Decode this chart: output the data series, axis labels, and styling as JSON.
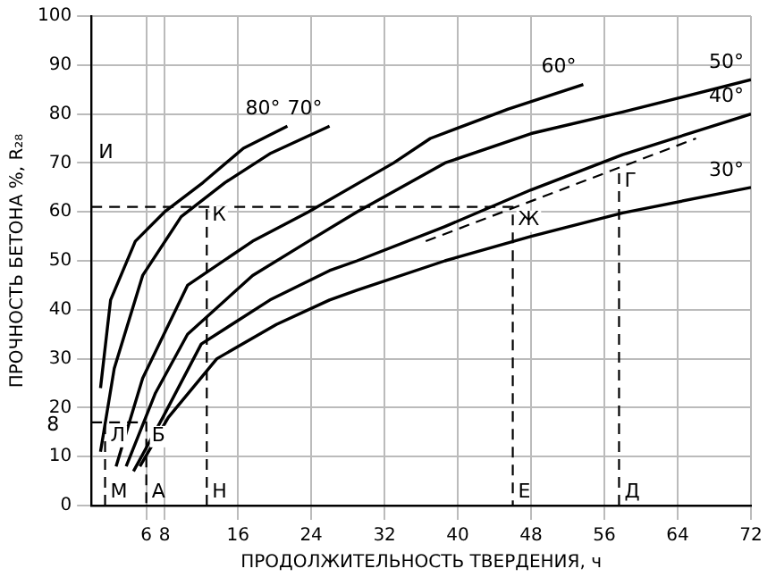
{
  "chart_data": {
    "type": "line",
    "xlabel": "ПРОДОЛЖИТЕЛЬНОСТЬ ТВЕРДЕНИЯ, ч",
    "ylabel": "ПРОЧНОСТЬ БЕТОНА %, R₂₈",
    "xlim": [
      0,
      72
    ],
    "xticks": [
      6,
      8,
      16,
      24,
      32,
      40,
      48,
      56,
      64,
      72
    ],
    "ylim": [
      0,
      100
    ],
    "yticks": [
      0,
      10,
      20,
      30,
      40,
      50,
      60,
      70,
      80,
      90,
      100
    ],
    "grid": true,
    "legend": false,
    "marker": "none",
    "series": [
      {
        "name": "80°",
        "color": "#000000",
        "x": [
          1.0,
          2.1,
          4.8,
          8,
          12.2,
          16.6,
          21.4
        ],
        "values": [
          24,
          42,
          54,
          60,
          66,
          73,
          77.5
        ]
      },
      {
        "name": "70°",
        "color": "#000000",
        "x": [
          1.0,
          2.5,
          5.6,
          9.8,
          14.6,
          19.6,
          26
        ],
        "values": [
          11,
          28,
          47,
          59,
          66,
          72,
          77.5
        ]
      },
      {
        "name": "60°",
        "color": "#000000",
        "x": [
          2.7,
          5.6,
          10.5,
          17.6,
          23.7,
          33,
          37,
          45.5,
          53.7
        ],
        "values": [
          8,
          26,
          45,
          54,
          60,
          70,
          75,
          81,
          86
        ]
      },
      {
        "name": "50°",
        "color": "#000000",
        "x": [
          3.8,
          7,
          10.5,
          17.6,
          23.7,
          29,
          38.6,
          48,
          58,
          72
        ],
        "values": [
          8,
          23,
          35,
          47,
          54,
          60,
          70,
          76,
          80.4,
          87
        ]
      },
      {
        "name": "40°",
        "color": "#000000",
        "x": [
          4.6,
          7.8,
          12,
          19.5,
          26,
          29,
          38.6,
          48,
          58,
          72
        ],
        "values": [
          7,
          18,
          33,
          42,
          48,
          50,
          57,
          64.5,
          71.7,
          80
        ]
      },
      {
        "name": "30°",
        "color": "#000000",
        "x": [
          5.3,
          8.4,
          13.7,
          20.2,
          26,
          29,
          38.6,
          48,
          58,
          72
        ],
        "values": [
          8,
          18,
          30,
          37,
          42,
          44,
          50,
          55,
          59.8,
          65
        ]
      },
      {
        "type": "line",
        "line_style": "dashed",
        "color": "#000000",
        "x": [
          0,
          46,
          46
        ],
        "values": [
          61,
          61,
          0
        ]
      },
      {
        "type": "line",
        "line_style": "dashed",
        "color": "#000000",
        "x": [
          12.6,
          12.6
        ],
        "values": [
          0,
          62
        ]
      },
      {
        "type": "line",
        "line_style": "dashed",
        "color": "#000000",
        "x": [
          0,
          6,
          6
        ],
        "values": [
          17,
          17,
          0
        ]
      },
      {
        "type": "line",
        "line_style": "dashed",
        "color": "#000000",
        "x": [
          57.6,
          57.6
        ],
        "values": [
          0,
          69
        ]
      },
      {
        "type": "line",
        "line_style": "dashed",
        "color": "#000000",
        "x": [
          36.5,
          66
        ],
        "values": [
          54,
          75
        ]
      },
      {
        "type": "line",
        "line_style": "dashed",
        "color": "#000000",
        "x": [
          1.5,
          1.5
        ],
        "values": [
          0,
          17
        ]
      }
    ],
    "annotations": [
      "И",
      {
        "text": "К",
        "x": 12.6,
        "y": 62
      },
      {
        "text": "Ж",
        "x": 46,
        "y": 61
      },
      {
        "text": "Г",
        "x": 57.6,
        "y": 69
      },
      {
        "text": "Д",
        "x": 57.6,
        "y": 0
      },
      {
        "text": "Е",
        "x": 46,
        "y": 0
      },
      {
        "text": "М",
        "x": 1.5,
        "y": 0
      },
      {
        "text": "А",
        "x": 6,
        "y": 0
      },
      {
        "text": "Н",
        "x": 12.6,
        "y": 0
      },
      {
        "text": "Б",
        "x": 6,
        "y": 17
      },
      {
        "text": "Л",
        "x": 1.5,
        "y": 17
      },
      {
        "text": "8",
        "x": 0,
        "y": 17
      }
    ]
  }
}
